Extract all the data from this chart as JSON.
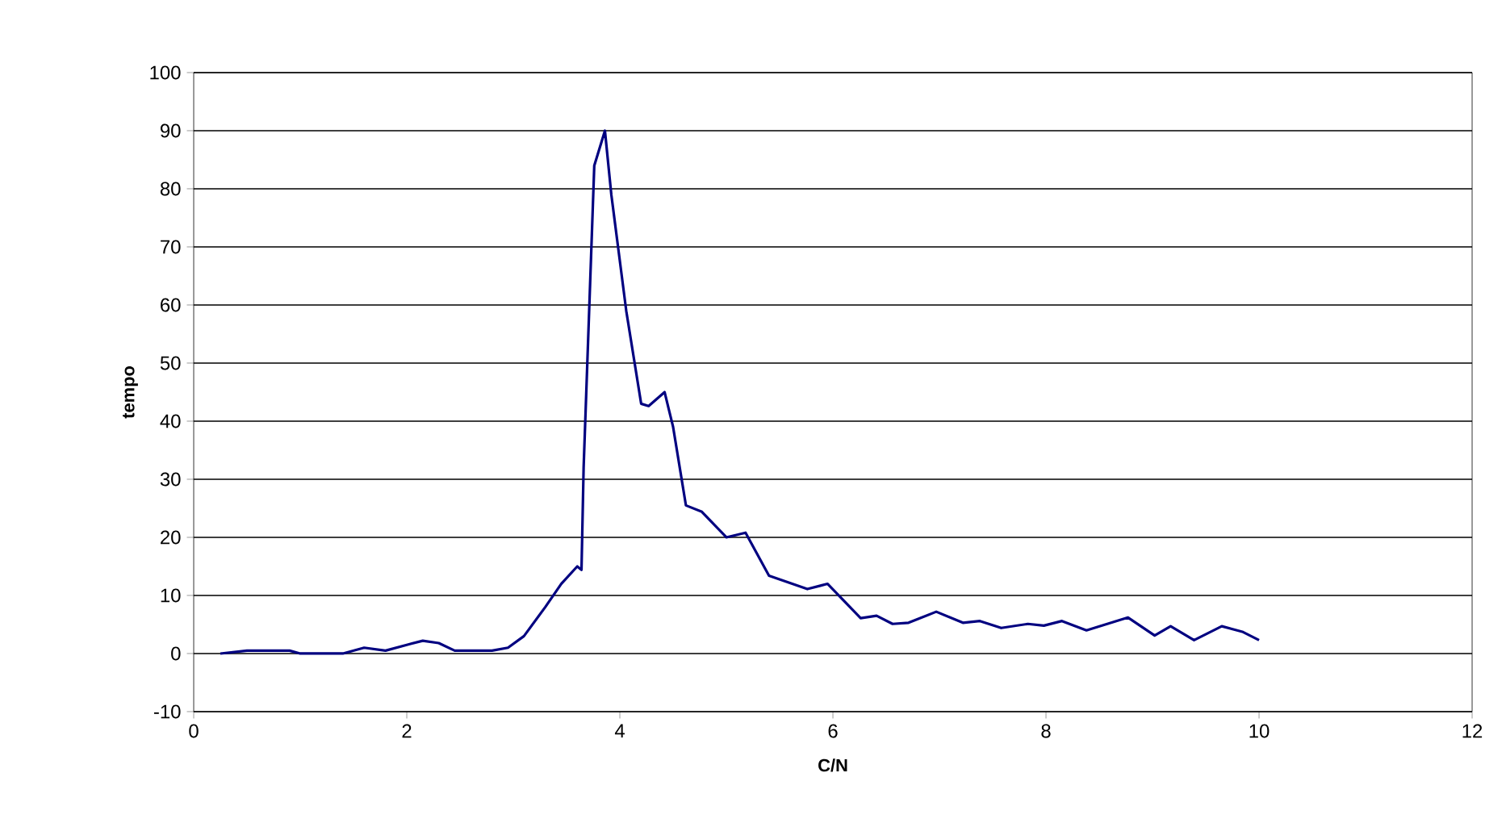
{
  "chart_data": {
    "type": "line",
    "xlabel": "C/N",
    "ylabel": "tempo",
    "xlim": [
      0,
      12
    ],
    "xticks": [
      0,
      2,
      4,
      6,
      8,
      10,
      12
    ],
    "ylim": [
      -10,
      100
    ],
    "yticks": [
      -10,
      0,
      10,
      20,
      30,
      40,
      50,
      60,
      70,
      80,
      90,
      100
    ],
    "grid": "y",
    "marker": "none",
    "line_style": "solid",
    "series": [
      {
        "color": "#000080",
        "x": [
          0.25,
          0.5,
          0.9,
          1.0,
          1.4,
          1.6,
          1.8,
          2.0,
          2.15,
          2.3,
          2.45,
          2.8,
          2.95,
          3.1,
          3.3,
          3.45,
          3.6,
          3.64,
          3.66,
          3.76,
          3.86,
          3.92,
          4.06,
          4.2,
          4.27,
          4.42,
          4.5,
          4.62,
          4.77,
          5.0,
          5.18,
          5.4,
          5.76,
          5.95,
          6.26,
          6.41,
          6.56,
          6.71,
          6.97,
          7.22,
          7.38,
          7.58,
          7.83,
          7.98,
          8.15,
          8.38,
          8.77,
          9.02,
          9.17,
          9.39,
          9.65,
          9.85,
          10.0
        ],
        "values": [
          0,
          0.5,
          0.5,
          0,
          0,
          1,
          0.5,
          1.5,
          2.2,
          1.8,
          0.5,
          0.5,
          1,
          3,
          8,
          12,
          15,
          14.4,
          32,
          84,
          90,
          79,
          59,
          43,
          42.6,
          45,
          39,
          25.5,
          24.4,
          20,
          20.8,
          13.4,
          11.1,
          12,
          6.1,
          6.5,
          5.1,
          5.3,
          7.2,
          5.3,
          5.6,
          4.4,
          5.1,
          4.8,
          5.6,
          4,
          6.2,
          3.1,
          4.7,
          2.3,
          4.7,
          3.7,
          2.3
        ]
      }
    ]
  }
}
